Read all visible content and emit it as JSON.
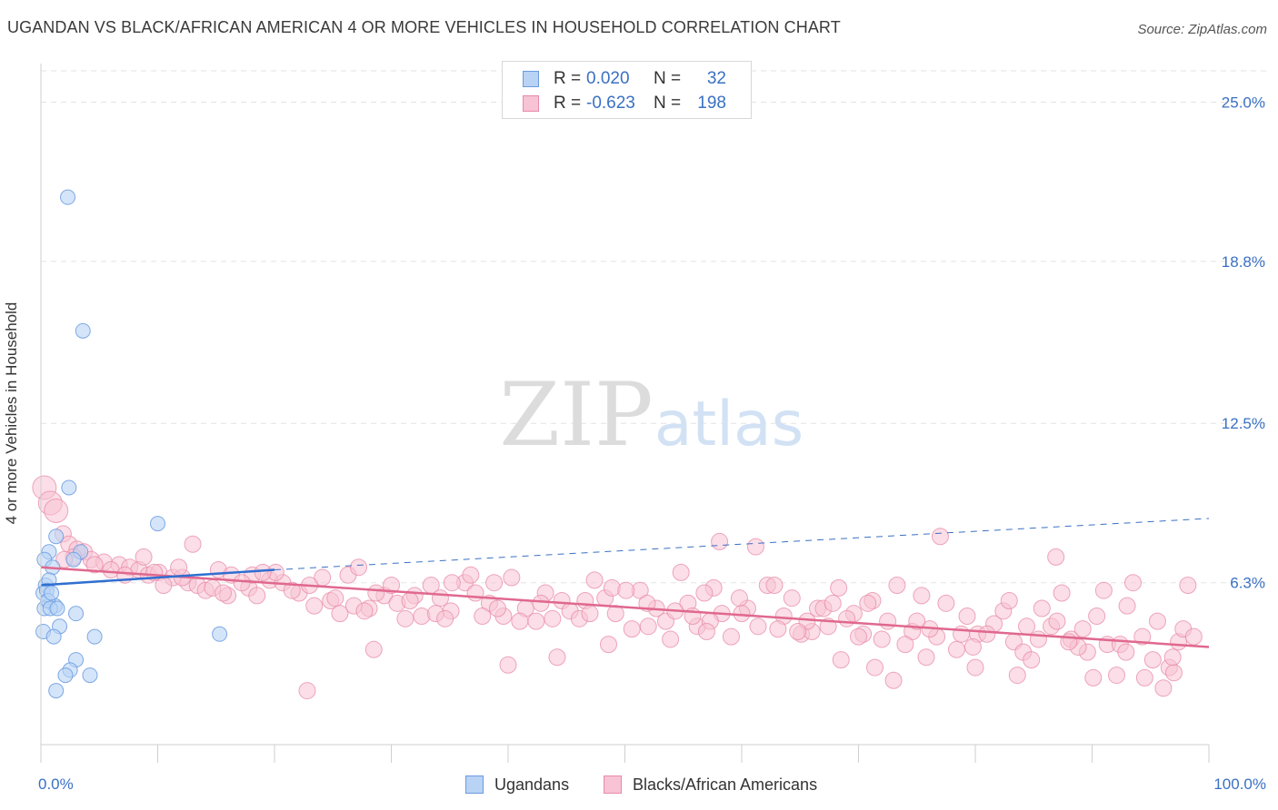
{
  "title": "UGANDAN VS BLACK/AFRICAN AMERICAN 4 OR MORE VEHICLES IN HOUSEHOLD CORRELATION CHART",
  "source": "Source: ZipAtlas.com",
  "watermark": {
    "zip": "ZIP",
    "atlas": "atlas"
  },
  "legend": {
    "r_label": "R =",
    "n_label": "N =",
    "rows": [
      {
        "r": "0.020",
        "n": "32",
        "color": "#6a9be0",
        "fill": "#b9d3f5"
      },
      {
        "r": "-0.623",
        "n": "198",
        "color": "#e88aa8",
        "fill": "#f8c3d4"
      }
    ]
  },
  "bottom_legend": [
    "Ugandans",
    "Blacks/African Americans"
  ],
  "chart_data": {
    "type": "scatter",
    "title": "UGANDAN VS BLACK/AFRICAN AMERICAN 4 OR MORE VEHICLES IN HOUSEHOLD CORRELATION CHART",
    "xlabel": "",
    "ylabel": "4 or more Vehicles in Household",
    "xlim": [
      0,
      100
    ],
    "ylim": [
      0,
      26.5
    ],
    "x_tick_labels": [
      "0.0%",
      "100.0%"
    ],
    "y_ticks": [
      6.3,
      12.5,
      18.8,
      25.0
    ],
    "y_tick_labels": [
      "6.3%",
      "12.5%",
      "18.8%",
      "25.0%"
    ],
    "grid": "horizontal dashed",
    "legend_position": "top-center",
    "series": [
      {
        "name": "Ugandans",
        "color": "#6a9be0",
        "fill": "#b9d3f5",
        "trend": {
          "x": [
            0,
            20
          ],
          "y": [
            6.2,
            6.8
          ]
        },
        "trend_extended": {
          "x": [
            20,
            100
          ],
          "y": [
            6.8,
            8.8
          ]
        },
        "points": [
          [
            2.3,
            21.3
          ],
          [
            3.6,
            16.1
          ],
          [
            2.4,
            10.0
          ],
          [
            10.0,
            8.6
          ],
          [
            1.3,
            8.1
          ],
          [
            0.7,
            7.5
          ],
          [
            3.4,
            7.5
          ],
          [
            0.3,
            7.2
          ],
          [
            1.0,
            6.9
          ],
          [
            2.8,
            7.2
          ],
          [
            0.4,
            6.2
          ],
          [
            0.7,
            6.4
          ],
          [
            0.2,
            5.9
          ],
          [
            0.5,
            6.0
          ],
          [
            0.6,
            5.6
          ],
          [
            1.2,
            5.4
          ],
          [
            0.3,
            5.3
          ],
          [
            0.6,
            5.6
          ],
          [
            0.8,
            5.3
          ],
          [
            1.4,
            5.3
          ],
          [
            3.0,
            5.1
          ],
          [
            1.6,
            4.6
          ],
          [
            0.2,
            4.4
          ],
          [
            1.1,
            4.2
          ],
          [
            4.6,
            4.2
          ],
          [
            15.3,
            4.3
          ],
          [
            3.0,
            3.3
          ],
          [
            2.5,
            2.9
          ],
          [
            2.1,
            2.7
          ],
          [
            4.2,
            2.7
          ],
          [
            1.3,
            2.1
          ],
          [
            0.9,
            5.9
          ]
        ]
      },
      {
        "name": "Blacks/African Americans",
        "color": "#e88aa8",
        "fill": "#f8c3d4",
        "trend": {
          "x": [
            0,
            100
          ],
          "y": [
            6.9,
            3.8
          ]
        },
        "points": [
          [
            0.3,
            10.0
          ],
          [
            0.8,
            9.4
          ],
          [
            1.3,
            9.1
          ],
          [
            1.9,
            8.2
          ],
          [
            2.4,
            7.8
          ],
          [
            3.1,
            7.6
          ],
          [
            3.7,
            7.5
          ],
          [
            2.8,
            7.3
          ],
          [
            4.3,
            7.2
          ],
          [
            5.4,
            7.1
          ],
          [
            6.7,
            7.0
          ],
          [
            7.6,
            6.9
          ],
          [
            8.4,
            6.8
          ],
          [
            9.2,
            6.6
          ],
          [
            10.1,
            6.7
          ],
          [
            11.3,
            6.5
          ],
          [
            12.6,
            6.3
          ],
          [
            13.4,
            6.2
          ],
          [
            14.1,
            6.0
          ],
          [
            15.2,
            6.8
          ],
          [
            16.3,
            6.6
          ],
          [
            17.8,
            6.1
          ],
          [
            18.5,
            5.8
          ],
          [
            19.6,
            6.4
          ],
          [
            20.7,
            6.3
          ],
          [
            22.1,
            5.9
          ],
          [
            23.4,
            5.4
          ],
          [
            24.8,
            5.6
          ],
          [
            25.6,
            5.1
          ],
          [
            26.3,
            6.6
          ],
          [
            27.2,
            6.9
          ],
          [
            28.1,
            5.3
          ],
          [
            29.4,
            5.8
          ],
          [
            30.5,
            5.5
          ],
          [
            31.2,
            4.9
          ],
          [
            32.6,
            5.0
          ],
          [
            33.4,
            6.2
          ],
          [
            34.2,
            5.7
          ],
          [
            35.1,
            5.2
          ],
          [
            36.3,
            6.3
          ],
          [
            37.2,
            5.9
          ],
          [
            38.4,
            5.5
          ],
          [
            39.6,
            5.0
          ],
          [
            40.3,
            6.5
          ],
          [
            41.5,
            5.3
          ],
          [
            42.4,
            4.8
          ],
          [
            43.2,
            5.9
          ],
          [
            44.6,
            5.6
          ],
          [
            45.3,
            5.2
          ],
          [
            46.1,
            4.9
          ],
          [
            47.4,
            6.4
          ],
          [
            48.3,
            5.7
          ],
          [
            49.2,
            5.1
          ],
          [
            50.6,
            4.5
          ],
          [
            51.3,
            6.0
          ],
          [
            52.7,
            5.3
          ],
          [
            53.5,
            4.8
          ],
          [
            54.8,
            6.7
          ],
          [
            55.4,
            5.5
          ],
          [
            56.2,
            4.6
          ],
          [
            57.6,
            6.1
          ],
          [
            58.3,
            5.1
          ],
          [
            59.1,
            4.2
          ],
          [
            60.5,
            5.3
          ],
          [
            61.4,
            4.6
          ],
          [
            62.2,
            6.2
          ],
          [
            63.6,
            5.0
          ],
          [
            64.3,
            5.7
          ],
          [
            65.1,
            4.3
          ],
          [
            66.5,
            5.3
          ],
          [
            67.4,
            4.6
          ],
          [
            68.3,
            6.1
          ],
          [
            69.6,
            5.1
          ],
          [
            70.4,
            4.3
          ],
          [
            71.2,
            5.6
          ],
          [
            72.5,
            4.8
          ],
          [
            73.3,
            6.2
          ],
          [
            74.6,
            4.4
          ],
          [
            75.4,
            5.8
          ],
          [
            76.7,
            4.2
          ],
          [
            77.5,
            5.5
          ],
          [
            78.4,
            3.7
          ],
          [
            79.3,
            5.0
          ],
          [
            80.2,
            4.3
          ],
          [
            81.6,
            4.7
          ],
          [
            82.4,
            5.2
          ],
          [
            83.3,
            4.0
          ],
          [
            84.1,
            3.6
          ],
          [
            85.7,
            5.3
          ],
          [
            86.5,
            4.6
          ],
          [
            87.4,
            5.9
          ],
          [
            88.2,
            4.1
          ],
          [
            89.6,
            3.6
          ],
          [
            90.4,
            5.0
          ],
          [
            91.3,
            3.9
          ],
          [
            92.1,
            2.7
          ],
          [
            93.5,
            6.3
          ],
          [
            94.3,
            4.2
          ],
          [
            95.2,
            3.3
          ],
          [
            96.6,
            3.0
          ],
          [
            97.4,
            4.0
          ],
          [
            98.2,
            6.2
          ],
          [
            22.8,
            2.1
          ],
          [
            28.5,
            3.7
          ],
          [
            40.0,
            3.1
          ],
          [
            44.2,
            3.4
          ],
          [
            48.6,
            3.9
          ],
          [
            57.3,
            4.8
          ],
          [
            66.0,
            4.4
          ],
          [
            68.5,
            3.3
          ],
          [
            71.4,
            3.0
          ],
          [
            73.0,
            2.5
          ],
          [
            75.8,
            3.4
          ],
          [
            80.0,
            3.0
          ],
          [
            83.6,
            2.7
          ],
          [
            85.4,
            4.1
          ],
          [
            88.8,
            3.8
          ],
          [
            90.1,
            2.6
          ],
          [
            92.4,
            3.9
          ],
          [
            94.5,
            2.6
          ],
          [
            96.1,
            2.2
          ],
          [
            97.0,
            2.8
          ],
          [
            13.0,
            7.8
          ],
          [
            35.2,
            6.3
          ],
          [
            58.1,
            7.9
          ],
          [
            61.2,
            7.7
          ],
          [
            77.0,
            8.1
          ],
          [
            86.9,
            7.3
          ],
          [
            6.0,
            6.8
          ],
          [
            8.8,
            7.3
          ],
          [
            10.5,
            6.2
          ],
          [
            12.1,
            6.5
          ],
          [
            14.7,
            6.1
          ],
          [
            16.0,
            5.8
          ],
          [
            18.1,
            6.6
          ],
          [
            20.1,
            6.7
          ],
          [
            21.5,
            6.0
          ],
          [
            24.1,
            6.5
          ],
          [
            26.8,
            5.4
          ],
          [
            28.7,
            5.9
          ],
          [
            30.0,
            6.2
          ],
          [
            32.0,
            5.8
          ],
          [
            33.8,
            5.1
          ],
          [
            36.8,
            6.6
          ],
          [
            38.8,
            6.3
          ],
          [
            41.0,
            4.8
          ],
          [
            42.8,
            5.5
          ],
          [
            46.6,
            5.6
          ],
          [
            48.9,
            6.1
          ],
          [
            50.1,
            6.0
          ],
          [
            52.0,
            4.6
          ],
          [
            53.9,
            4.1
          ],
          [
            55.8,
            5.0
          ],
          [
            57.0,
            4.4
          ],
          [
            59.8,
            5.7
          ],
          [
            62.8,
            6.2
          ],
          [
            63.1,
            4.5
          ],
          [
            65.6,
            4.8
          ],
          [
            67.0,
            5.3
          ],
          [
            69.0,
            4.9
          ],
          [
            70.8,
            5.5
          ],
          [
            72.0,
            4.1
          ],
          [
            74.0,
            3.9
          ],
          [
            76.1,
            4.5
          ],
          [
            78.8,
            4.3
          ],
          [
            81.0,
            4.3
          ],
          [
            82.9,
            5.6
          ],
          [
            84.8,
            3.3
          ],
          [
            87.0,
            4.8
          ],
          [
            89.2,
            4.5
          ],
          [
            91.0,
            6.0
          ],
          [
            93.0,
            5.4
          ],
          [
            95.6,
            4.8
          ],
          [
            97.8,
            4.5
          ],
          [
            98.7,
            4.2
          ],
          [
            2.0,
            7.2
          ],
          [
            4.6,
            7.0
          ],
          [
            7.2,
            6.6
          ],
          [
            9.7,
            6.7
          ],
          [
            11.8,
            6.9
          ],
          [
            15.6,
            5.9
          ],
          [
            17.2,
            6.3
          ],
          [
            19.0,
            6.7
          ],
          [
            23.0,
            6.2
          ],
          [
            25.2,
            5.7
          ],
          [
            27.7,
            5.2
          ],
          [
            31.6,
            5.6
          ],
          [
            34.6,
            4.9
          ],
          [
            37.8,
            5.0
          ],
          [
            39.1,
            5.3
          ],
          [
            43.8,
            4.9
          ],
          [
            47.0,
            5.1
          ],
          [
            51.9,
            5.5
          ],
          [
            54.3,
            5.2
          ],
          [
            56.8,
            5.9
          ],
          [
            60.0,
            5.1
          ],
          [
            64.8,
            4.4
          ],
          [
            67.8,
            5.5
          ],
          [
            70.0,
            4.2
          ],
          [
            75.0,
            4.8
          ],
          [
            79.8,
            3.8
          ],
          [
            84.4,
            4.6
          ],
          [
            88.0,
            4.0
          ],
          [
            92.9,
            3.6
          ],
          [
            96.9,
            3.4
          ]
        ]
      }
    ]
  }
}
